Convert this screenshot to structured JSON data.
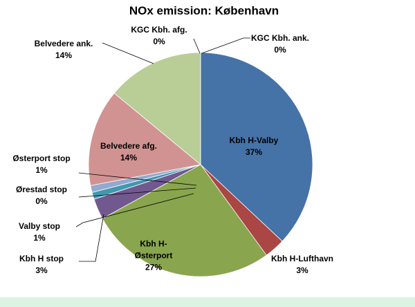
{
  "chart_data": {
    "type": "pie",
    "title": "NOx emission: København",
    "categories": [
      "Kbh H-Valby",
      "Kbh H-Lufthavn",
      "Kbh H-Østerport",
      "Kbh H stop",
      "Valby stop",
      "Ørestad stop",
      "Østerport stop",
      "Belvedere afg.",
      "Belvedere ank.",
      "KGC Kbh. afg.",
      "KGC Kbh. ank."
    ],
    "values": [
      37,
      3,
      27,
      3,
      1,
      0,
      1,
      14,
      14,
      0,
      0
    ],
    "value_labels": [
      "37%",
      "3%",
      "27%",
      "3%",
      "1%",
      "0%",
      "1%",
      "14%",
      "14%",
      "0%",
      "0%"
    ],
    "colors": [
      "#4572a7",
      "#aa4643",
      "#89a54e",
      "#71588f",
      "#4198af",
      "#db843d",
      "#93a9cf",
      "#d19392",
      "#b9cd96",
      "#a99bbd",
      "#91c3d5"
    ]
  }
}
